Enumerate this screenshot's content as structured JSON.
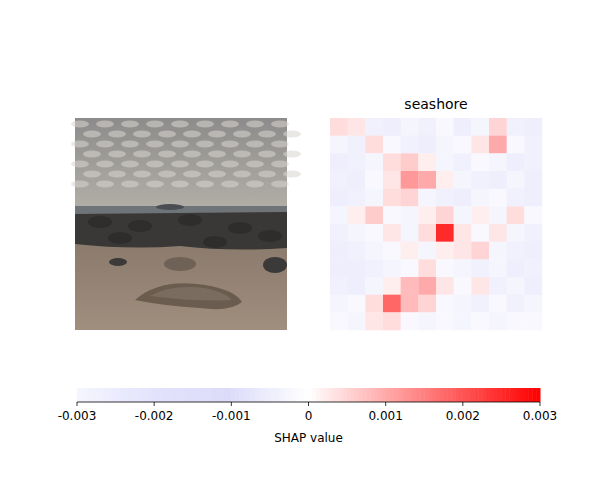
{
  "chart_data": {
    "type": "heatmap",
    "title": "seashore",
    "tick_labels": false,
    "cells": [
      [
        0.0004,
        0.0003,
        -0.0004,
        -0.0005,
        -0.0003,
        -0.0004,
        -0.0002,
        -0.0005,
        -0.0003,
        0.0005,
        -0.0004,
        -0.0005
      ],
      [
        -0.0003,
        -0.0004,
        0.0004,
        -0.0002,
        -0.0004,
        -0.0005,
        -0.0003,
        -0.0002,
        0.0003,
        0.001,
        -0.0002,
        -0.0004
      ],
      [
        -0.0005,
        -0.0004,
        -0.0003,
        0.0004,
        0.0006,
        0.0002,
        -0.0003,
        -0.0004,
        -0.0002,
        -0.0003,
        -0.0005,
        -0.0004
      ],
      [
        -0.0004,
        -0.0005,
        -0.0002,
        0.0003,
        0.0012,
        0.001,
        0.0002,
        -0.0003,
        -0.0004,
        -0.0005,
        -0.0003,
        -0.0005
      ],
      [
        -0.0005,
        -0.0004,
        -0.0003,
        0.0004,
        0.0005,
        -0.0003,
        -0.0004,
        -0.0005,
        -0.0003,
        -0.0002,
        -0.0004,
        -0.0005
      ],
      [
        -0.0003,
        0.0002,
        0.0006,
        -0.0002,
        -0.0003,
        0.0002,
        0.0005,
        -0.0003,
        0.0002,
        -0.0003,
        0.0004,
        -0.0002
      ],
      [
        -0.0004,
        -0.0003,
        -0.0002,
        0.0003,
        -0.0003,
        0.0004,
        0.0025,
        0.0003,
        -0.0002,
        0.0003,
        -0.0003,
        -0.0004
      ],
      [
        -0.0005,
        -0.0004,
        -0.0003,
        -0.0002,
        0.0002,
        -0.0003,
        0.0002,
        0.0003,
        0.0005,
        -0.0003,
        -0.0004,
        -0.0005
      ],
      [
        -0.0005,
        -0.0005,
        -0.0004,
        -0.0003,
        -0.0002,
        0.0004,
        -0.0002,
        -0.0003,
        -0.0004,
        -0.0003,
        -0.0005,
        -0.0004
      ],
      [
        -0.0004,
        -0.0005,
        -0.0003,
        0.0002,
        0.0008,
        0.001,
        0.0003,
        -0.0002,
        0.0003,
        -0.0004,
        -0.0003,
        -0.0005
      ],
      [
        -0.0003,
        -0.0002,
        0.0004,
        0.0018,
        0.0008,
        0.0005,
        -0.0002,
        -0.0003,
        -0.0004,
        -0.0002,
        -0.0004,
        -0.0003
      ],
      [
        -0.0002,
        -0.0003,
        0.0003,
        0.0004,
        -0.0002,
        -0.0003,
        -0.0002,
        -0.0003,
        -0.0002,
        -0.0003,
        -0.0002,
        -0.0002
      ]
    ],
    "colorbar": {
      "label": "SHAP value",
      "range": [
        -0.003,
        0.003
      ],
      "ticks": [
        -0.003,
        -0.002,
        -0.001,
        0.0,
        0.001,
        0.002,
        0.003
      ]
    }
  }
}
